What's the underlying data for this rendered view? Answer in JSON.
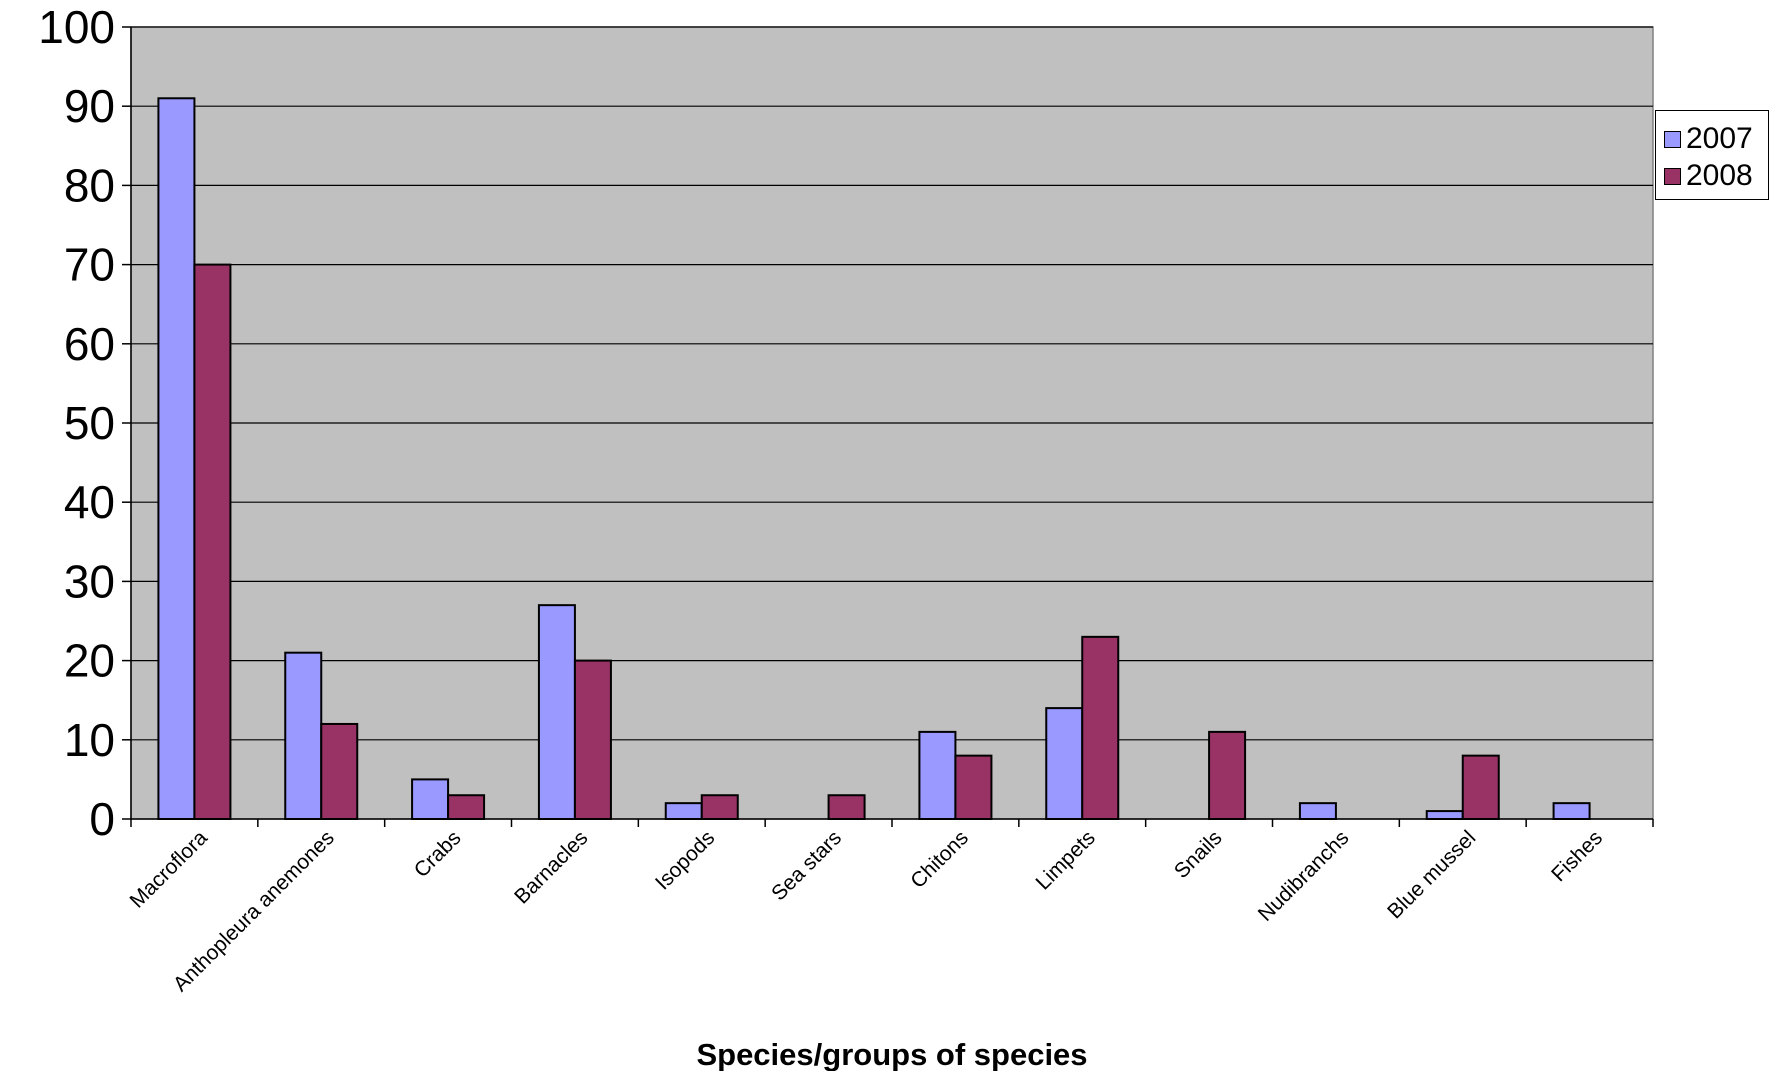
{
  "chart_data": {
    "type": "bar",
    "title": "",
    "xlabel": "Species/groups of species",
    "ylabel": "",
    "ylim": [
      0,
      100
    ],
    "yticks": [
      0,
      10,
      20,
      30,
      40,
      50,
      60,
      70,
      80,
      90,
      100
    ],
    "grid": true,
    "legend_position": "right",
    "plot_background": "#c0c0c0",
    "categories": [
      "Macroflora",
      "Anthopleura anemones",
      "Crabs",
      "Barnacles",
      "Isopods",
      "Sea stars",
      "Chitons",
      "Limpets",
      "Snails",
      "Nudibranchs",
      "Blue mussel",
      "Fishes"
    ],
    "series": [
      {
        "name": "2007",
        "color": "#9999ff",
        "values": [
          91,
          21,
          5,
          27,
          2,
          0,
          11,
          14,
          0,
          2,
          1,
          2
        ]
      },
      {
        "name": "2008",
        "color": "#993366",
        "values": [
          70,
          12,
          3,
          20,
          3,
          3,
          8,
          23,
          11,
          0,
          8,
          0
        ]
      }
    ]
  }
}
